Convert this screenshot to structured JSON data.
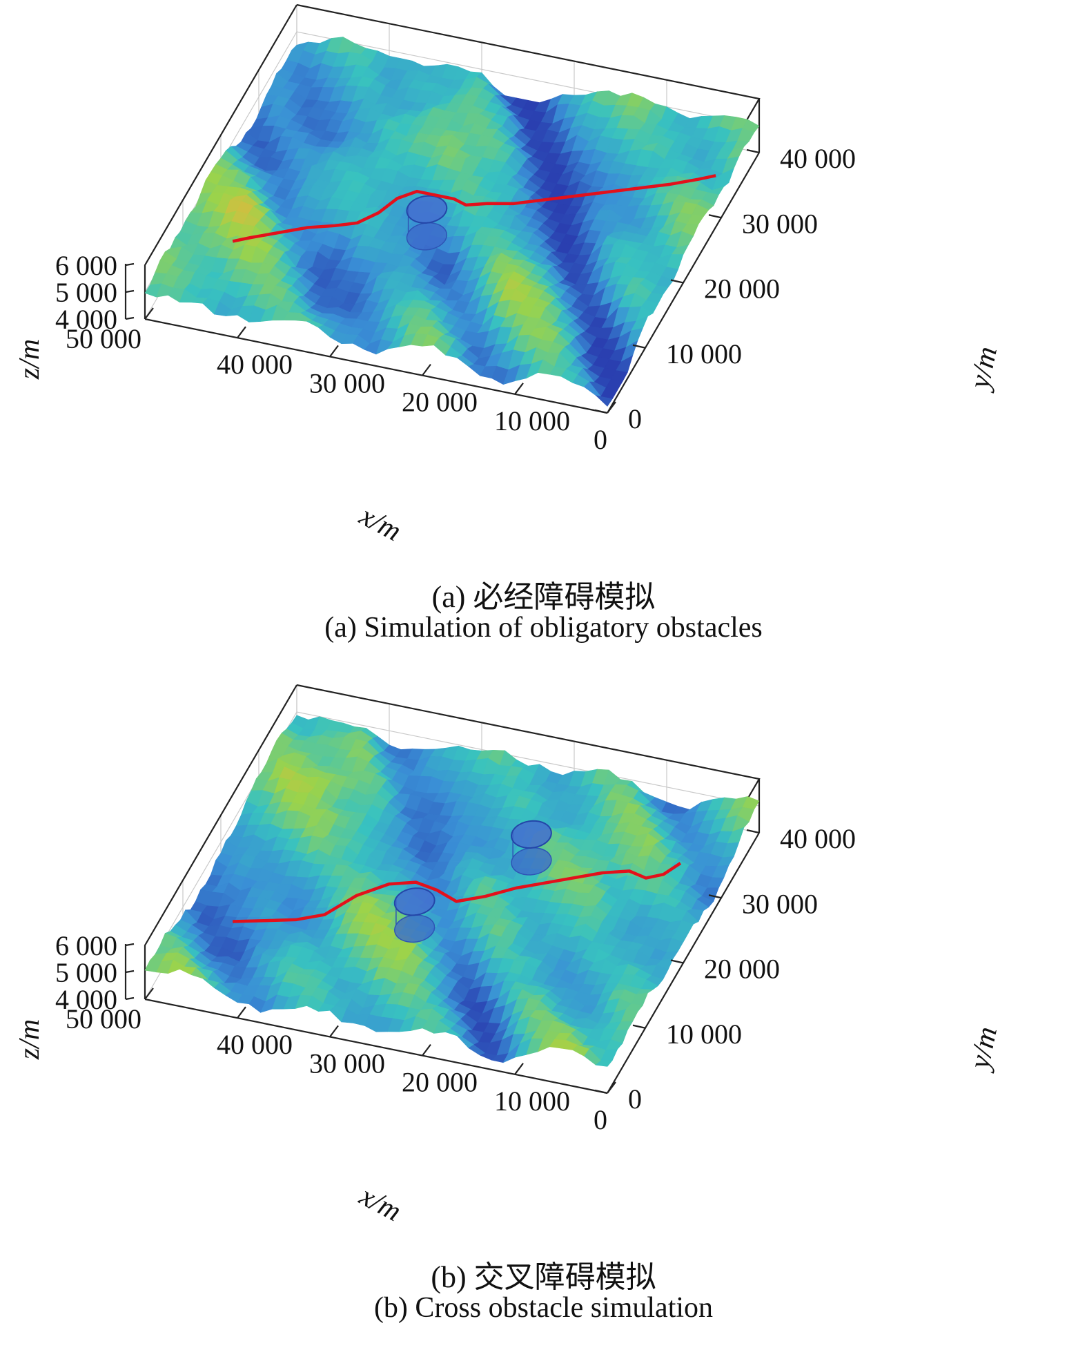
{
  "figure": {
    "panels": [
      {
        "id": "a",
        "caption_cn": "(a) 必经障碍模拟",
        "caption_en": "(a) Simulation of obligatory obstacles"
      },
      {
        "id": "b",
        "caption_cn": "(b) 交叉障碍模拟",
        "caption_en": "(b) Cross obstacle simulation"
      }
    ]
  },
  "chart_data": [
    {
      "type": "surface",
      "panel": "a",
      "xlabel": "x/m",
      "ylabel": "y/m",
      "zlabel": "z/m",
      "xlim": [
        0,
        50000
      ],
      "ylim": [
        0,
        40000
      ],
      "zlim": [
        4000,
        6000
      ],
      "x_ticks": [
        "50 000",
        "40 000",
        "30 000",
        "20 000",
        "10 000",
        "0"
      ],
      "y_ticks": [
        "0",
        "10 000",
        "20 000",
        "30 000",
        "40 000"
      ],
      "z_ticks": [
        "4 000",
        "5 000",
        "6 000"
      ],
      "grid": true,
      "colormap": [
        "#2a3fb0",
        "#3a8fd6",
        "#38c2c0",
        "#9cd34a",
        "#f2b23a"
      ],
      "path_color": "#e3101b",
      "path": [
        [
          44000,
          8500
        ],
        [
          42500,
          9500
        ],
        [
          40000,
          11000
        ],
        [
          37500,
          12500
        ],
        [
          35000,
          13500
        ],
        [
          33000,
          14500
        ],
        [
          31500,
          16500
        ],
        [
          30500,
          19000
        ],
        [
          29000,
          20500
        ],
        [
          27000,
          20500
        ],
        [
          25000,
          20500
        ],
        [
          23500,
          20000
        ],
        [
          21500,
          20800
        ],
        [
          19000,
          21500
        ],
        [
          17000,
          22500
        ],
        [
          14000,
          24000
        ],
        [
          11000,
          25500
        ],
        [
          8000,
          27000
        ],
        [
          5000,
          28500
        ],
        [
          2500,
          30000
        ],
        [
          1000,
          31000
        ]
      ],
      "obstacles": [
        {
          "cx": 26500,
          "cy": 17000,
          "r": 2000
        }
      ]
    },
    {
      "type": "surface",
      "panel": "b",
      "xlabel": "x/m",
      "ylabel": "y/m",
      "zlabel": "z/m",
      "xlim": [
        0,
        50000
      ],
      "ylim": [
        0,
        40000
      ],
      "zlim": [
        4000,
        6000
      ],
      "x_ticks": [
        "50 000",
        "40 000",
        "30 000",
        "20 000",
        "10 000",
        "0"
      ],
      "y_ticks": [
        "0",
        "10 000",
        "20 000",
        "30 000",
        "40 000"
      ],
      "z_ticks": [
        "4 000",
        "5 000",
        "6 000"
      ],
      "grid": true,
      "colormap": [
        "#2a3fb0",
        "#3a8fd6",
        "#38c2c0",
        "#9cd34a",
        "#f2b23a"
      ],
      "path_color": "#e3101b",
      "path": [
        [
          44000,
          8500
        ],
        [
          41000,
          9500
        ],
        [
          38000,
          10500
        ],
        [
          35500,
          12000
        ],
        [
          33500,
          15500
        ],
        [
          31000,
          18000
        ],
        [
          28500,
          19000
        ],
        [
          26000,
          18500
        ],
        [
          23500,
          17500
        ],
        [
          21000,
          19000
        ],
        [
          18500,
          21000
        ],
        [
          16000,
          22500
        ],
        [
          13500,
          24000
        ],
        [
          11000,
          25500
        ],
        [
          8500,
          26500
        ],
        [
          6500,
          26000
        ],
        [
          5000,
          27000
        ],
        [
          4000,
          29000
        ]
      ],
      "obstacles": [
        {
          "cx": 27000,
          "cy": 15000,
          "r": 2000
        },
        {
          "cx": 19500,
          "cy": 27500,
          "r": 2000
        }
      ]
    }
  ]
}
